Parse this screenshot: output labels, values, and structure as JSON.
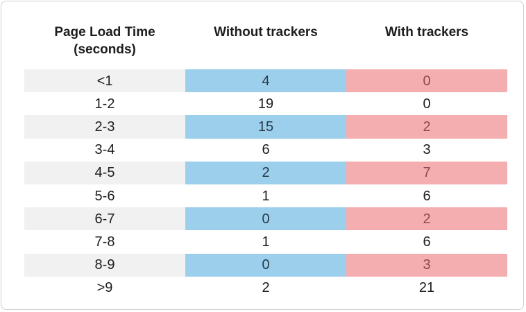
{
  "chart_data": {
    "type": "table",
    "columns": [
      "Page Load Time (seconds)",
      "Without trackers",
      "With trackers"
    ],
    "rows": [
      [
        "<1",
        "4",
        "0"
      ],
      [
        "1-2",
        "19",
        "0"
      ],
      [
        "2-3",
        "15",
        "2"
      ],
      [
        "3-4",
        "6",
        "3"
      ],
      [
        "4-5",
        "2",
        "7"
      ],
      [
        "5-6",
        "1",
        "6"
      ],
      [
        "6-7",
        "0",
        "2"
      ],
      [
        "7-8",
        "1",
        "6"
      ],
      [
        "8-9",
        "0",
        "3"
      ],
      [
        ">9",
        "2",
        "21"
      ]
    ],
    "shaded_rows": [
      0,
      2,
      4,
      6,
      8
    ],
    "colors": {
      "label_shade": "#f1f1f1",
      "without_trackers_shade": "#9bcfec",
      "with_trackers_shade": "#f5aeb0"
    }
  }
}
